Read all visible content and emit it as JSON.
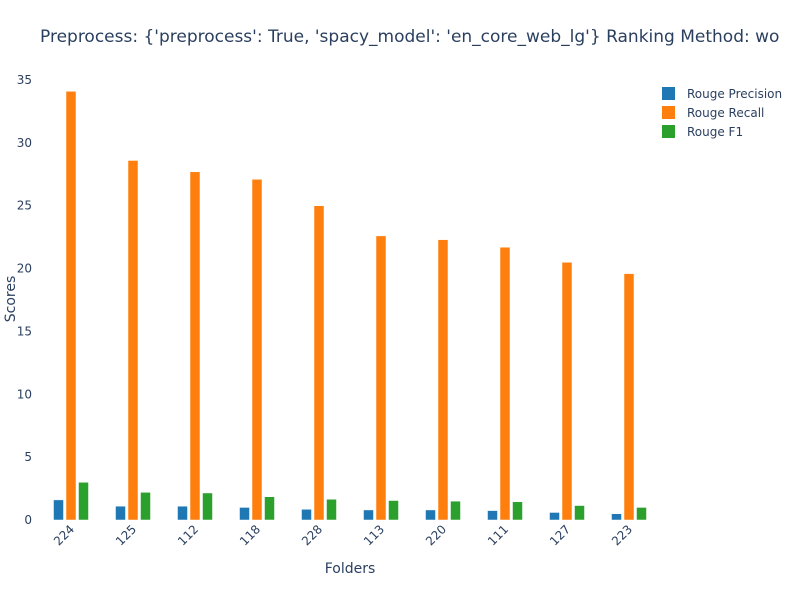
{
  "chart_data": {
    "type": "bar",
    "title": "Preprocess: {'preprocess': True, 'spacy_model': 'en_core_web_lg'} Ranking Method: wo",
    "xlabel": "Folders",
    "ylabel": "Scores",
    "ylim": [
      0,
      35
    ],
    "yticks": [
      0,
      5,
      10,
      15,
      20,
      25,
      30,
      35
    ],
    "categories": [
      "224",
      "125",
      "112",
      "118",
      "228",
      "113",
      "220",
      "111",
      "127",
      "223"
    ],
    "legend_position": "top-right",
    "series": [
      {
        "name": "Rouge Precision",
        "color": "#1f77b4",
        "values": [
          1.6,
          1.1,
          1.1,
          1.0,
          0.85,
          0.8,
          0.8,
          0.75,
          0.6,
          0.5
        ]
      },
      {
        "name": "Rouge Recall",
        "color": "#ff7f0e",
        "values": [
          34.1,
          28.6,
          27.7,
          27.1,
          25.0,
          22.6,
          22.3,
          21.7,
          20.5,
          19.6
        ]
      },
      {
        "name": "Rouge F1",
        "color": "#2ca02c",
        "values": [
          3.0,
          2.2,
          2.15,
          1.85,
          1.65,
          1.55,
          1.5,
          1.45,
          1.15,
          1.0
        ]
      }
    ]
  }
}
